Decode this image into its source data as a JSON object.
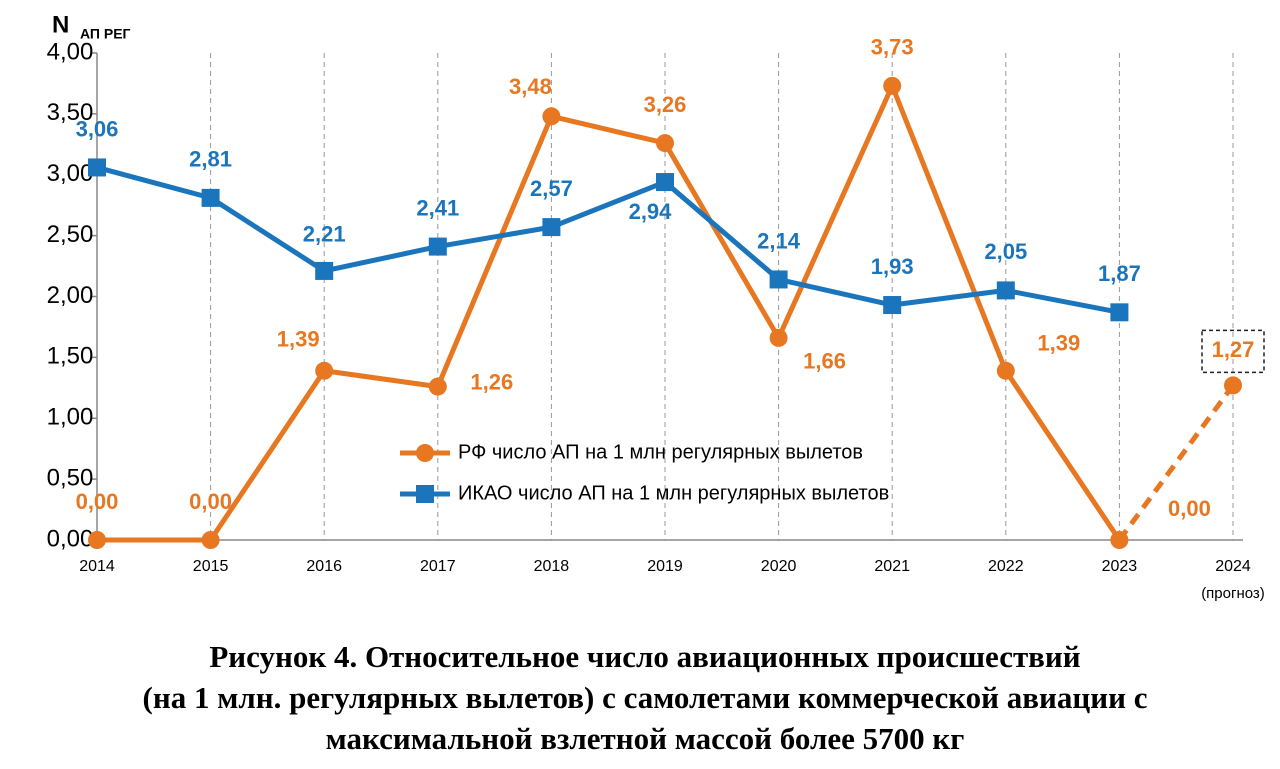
{
  "chart_data": {
    "type": "line",
    "y_label": "N",
    "y_label_sub": "АП РЕГ",
    "categories": [
      "2014",
      "2015",
      "2016",
      "2017",
      "2018",
      "2019",
      "2020",
      "2021",
      "2022",
      "2023",
      "2024"
    ],
    "forecast_label": "(прогноз)",
    "ylim": [
      0,
      4
    ],
    "yticks": [
      {
        "value": 0,
        "label": "0,00"
      },
      {
        "value": 0.5,
        "label": "0,50"
      },
      {
        "value": 1,
        "label": "1,00"
      },
      {
        "value": 1.5,
        "label": "1,50"
      },
      {
        "value": 2,
        "label": "2,00"
      },
      {
        "value": 2.5,
        "label": "2,50"
      },
      {
        "value": 3,
        "label": "3,00"
      },
      {
        "value": 3.5,
        "label": "3,50"
      },
      {
        "value": 4,
        "label": "4,00"
      }
    ],
    "grid": true,
    "series": [
      {
        "name": "РФ число АП на 1 млн регулярных вылетов",
        "color": "#e87722",
        "marker": "circle",
        "values": [
          0,
          0,
          1.39,
          1.26,
          3.48,
          3.26,
          1.66,
          3.73,
          1.39,
          0,
          1.27
        ],
        "value_labels": [
          "0,00",
          "0,00",
          "1,39",
          "1,26",
          "3,48",
          "3,26",
          "1,66",
          "3,73",
          "1,39",
          "0,00",
          "1,27"
        ]
      },
      {
        "name": "ИКАО число АП на 1 млн регулярных вылетов",
        "color": "#1b75bc",
        "marker": "square",
        "values": [
          3.06,
          2.81,
          2.21,
          2.41,
          2.57,
          2.94,
          2.14,
          1.93,
          2.05,
          1.87,
          null
        ],
        "value_labels": [
          "3,06",
          "2,81",
          "2,21",
          "2,41",
          "2,57",
          "2,94",
          "2,14",
          "1,93",
          "2,05",
          "1,87",
          null
        ]
      }
    ],
    "caption": [
      "Рисунок 4. Относительное число авиационных происшествий",
      "(на 1 млн. регулярных вылетов) с самолетами коммерческой авиации с",
      "максимальной взлетной массой более 5700 кг"
    ]
  }
}
